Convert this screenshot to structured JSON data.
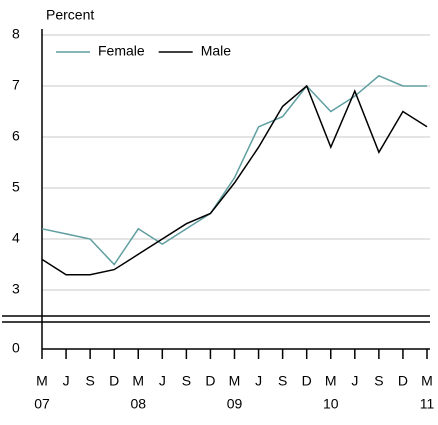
{
  "chart_data": {
    "type": "line",
    "title": "Percent",
    "categories": [
      "M",
      "J",
      "S",
      "D",
      "M",
      "J",
      "S",
      "D",
      "M",
      "J",
      "S",
      "D",
      "M",
      "J",
      "S",
      "D",
      "M"
    ],
    "years": [
      "07",
      null,
      null,
      null,
      "08",
      null,
      null,
      null,
      "09",
      null,
      null,
      null,
      "10",
      null,
      null,
      null,
      "11"
    ],
    "series": [
      {
        "name": "Female",
        "color": "#5f9ea0",
        "values": [
          4.2,
          4.1,
          4.0,
          3.5,
          4.2,
          3.9,
          4.2,
          4.5,
          5.2,
          6.2,
          6.4,
          7.0,
          6.5,
          6.8,
          7.2,
          7.0,
          7.0
        ]
      },
      {
        "name": "Male",
        "color": "#000000",
        "values": [
          3.6,
          3.3,
          3.3,
          3.4,
          3.7,
          4.0,
          4.3,
          4.5,
          5.1,
          5.8,
          6.6,
          7.0,
          5.8,
          6.9,
          5.7,
          6.5,
          6.2
        ]
      }
    ],
    "ylim": [
      2.4,
      8
    ],
    "yticks": [
      0,
      3,
      4,
      5,
      6,
      7,
      8
    ],
    "axis_break": true,
    "grid": true,
    "legend": "upper left"
  }
}
